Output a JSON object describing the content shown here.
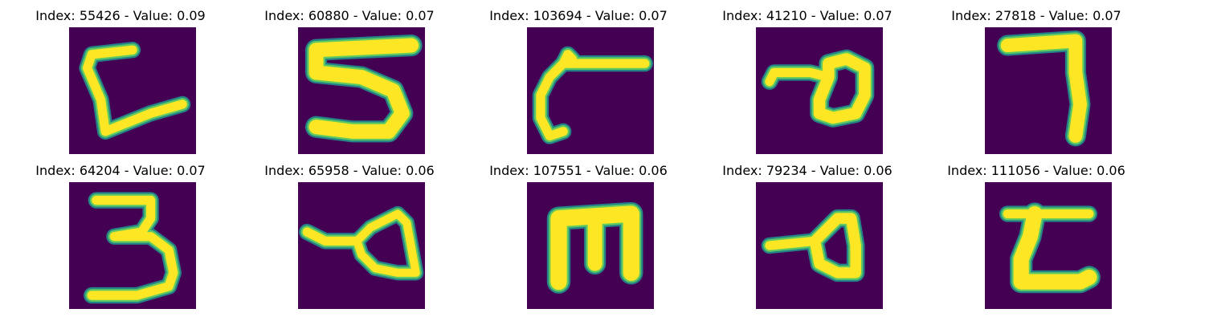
{
  "colors": {
    "background": "#440154",
    "stroke_core": "#fde725",
    "stroke_mid": "#5ec962",
    "stroke_edge": "#21918c"
  },
  "panels": [
    {
      "title": "Index: 55426 - Value: 0.09"
    },
    {
      "title": "Index: 60880 - Value: 0.07"
    },
    {
      "title": "Index: 103694 - Value: 0.07"
    },
    {
      "title": "Index: 41210 - Value: 0.07"
    },
    {
      "title": "Index: 27818 - Value: 0.07"
    },
    {
      "title": "Index: 64204 - Value: 0.07"
    },
    {
      "title": "Index: 65958 - Value: 0.06"
    },
    {
      "title": "Index: 107551 - Value: 0.06"
    },
    {
      "title": "Index: 79234 - Value: 0.06"
    },
    {
      "title": "Index: 111056 - Value: 0.06"
    }
  ]
}
